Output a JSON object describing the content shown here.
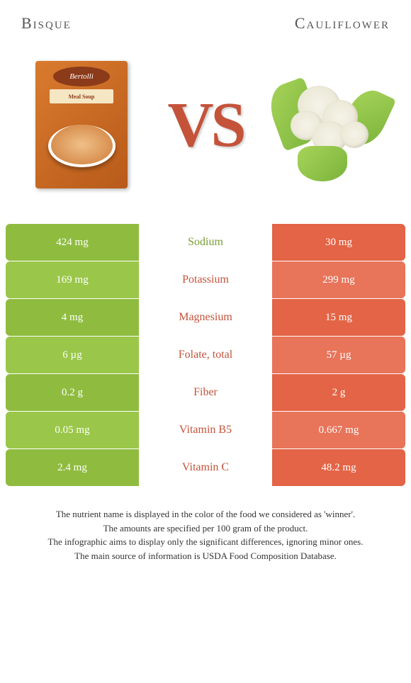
{
  "foods": {
    "left": {
      "name": "Bisque",
      "brand": "Bertolli",
      "subtitle": "Meal Soup"
    },
    "right": {
      "name": "Cauliflower"
    }
  },
  "vs_label": "VS",
  "colors": {
    "left": "#8fbc3f",
    "left_alt": "#9ac74a",
    "right": "#e36446",
    "right_alt": "#e8745a",
    "nutrient_left_winner": "#7a9e35",
    "nutrient_right_winner": "#c4533a"
  },
  "nutrients": [
    {
      "label": "Sodium",
      "left": "424 mg",
      "right": "30 mg",
      "winner": "left"
    },
    {
      "label": "Potassium",
      "left": "169 mg",
      "right": "299 mg",
      "winner": "right"
    },
    {
      "label": "Magnesium",
      "left": "4 mg",
      "right": "15 mg",
      "winner": "right"
    },
    {
      "label": "Folate, total",
      "left": "6 µg",
      "right": "57 µg",
      "winner": "right"
    },
    {
      "label": "Fiber",
      "left": "0.2 g",
      "right": "2 g",
      "winner": "right"
    },
    {
      "label": "Vitamin B5",
      "left": "0.05 mg",
      "right": "0.667 mg",
      "winner": "right"
    },
    {
      "label": "Vitamin C",
      "left": "2.4 mg",
      "right": "48.2 mg",
      "winner": "right"
    }
  ],
  "footer_lines": [
    "The nutrient name is displayed in the color of the food we considered as 'winner'.",
    "The amounts are specified per 100 gram of the product.",
    "The infographic aims to display only the significant differences, ignoring minor ones.",
    "The main source of information is USDA Food Composition Database."
  ]
}
